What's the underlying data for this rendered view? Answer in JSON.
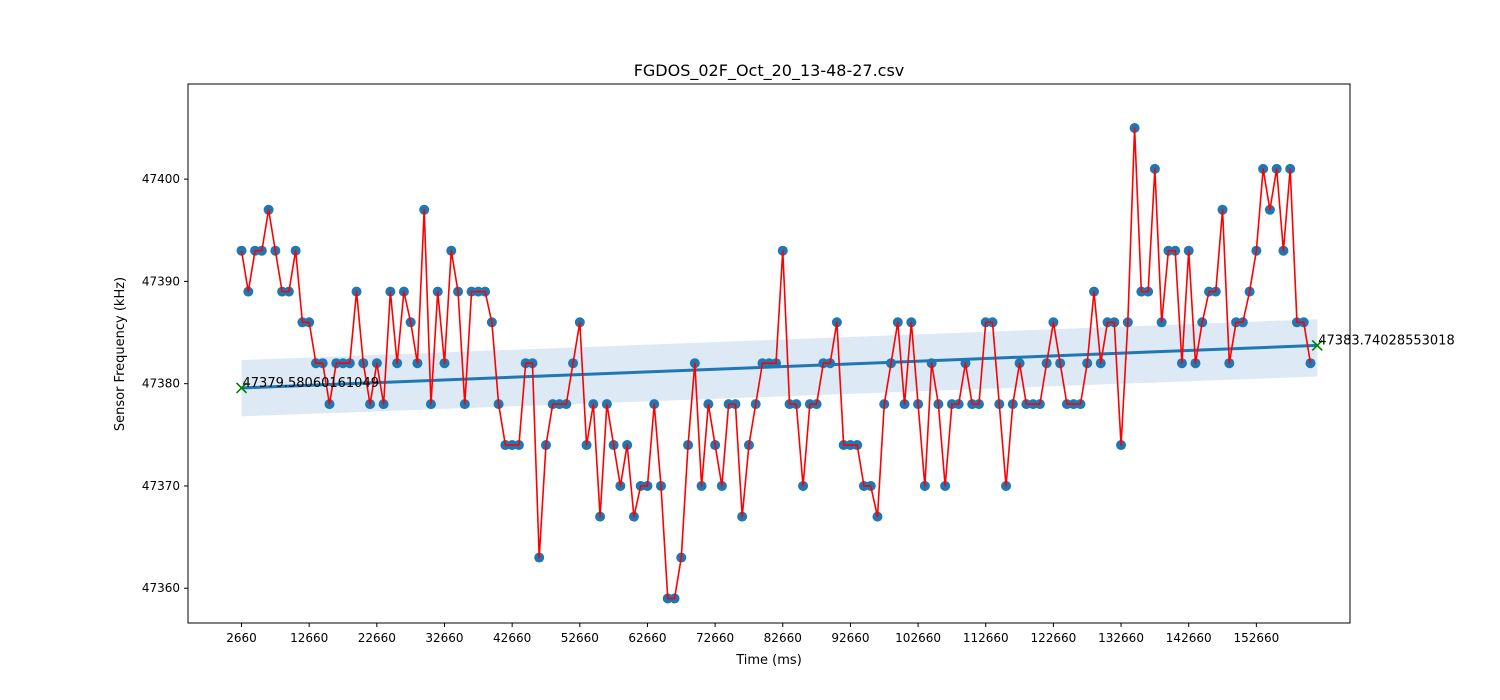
{
  "chart_data": {
    "type": "scatter",
    "title": "FGDOS_02F_Oct_20_13-48-27.csv",
    "xlabel": "Time (ms)",
    "ylabel": "Sensor Frequency (kHz)",
    "xlim": [
      -5252,
      166500
    ],
    "ylim": [
      47356.6,
      47409.3
    ],
    "xticks": [
      2660,
      12660,
      22660,
      32660,
      42660,
      52660,
      62660,
      72660,
      82660,
      92660,
      102660,
      112660,
      122660,
      132660,
      142660,
      152660
    ],
    "yticks": [
      47360,
      47370,
      47380,
      47390,
      47400
    ],
    "grid": false,
    "legend": "none",
    "colors": {
      "points": "#1f77b4",
      "line": "#ff0000",
      "regression": "#1f77b4",
      "band": "#c6dbef",
      "endpoint_marker": "#008000"
    },
    "x_start": 2660,
    "x_step": 1000,
    "y": [
      47393,
      47389,
      47393,
      47393,
      47397,
      47393,
      47389,
      47389,
      47393,
      47386,
      47386,
      47382,
      47382,
      47378,
      47382,
      47382,
      47382,
      47389,
      47382,
      47378,
      47382,
      47378,
      47389,
      47382,
      47389,
      47386,
      47382,
      47397,
      47378,
      47389,
      47382,
      47393,
      47389,
      47378,
      47389,
      47389,
      47389,
      47386,
      47378,
      47374,
      47374,
      47374,
      47382,
      47382,
      47363,
      47374,
      47378,
      47378,
      47378,
      47382,
      47386,
      47374,
      47378,
      47367,
      47378,
      47374,
      47370,
      47374,
      47367,
      47370,
      47370,
      47378,
      47370,
      47359,
      47359,
      47363,
      47374,
      47382,
      47370,
      47378,
      47374,
      47370,
      47378,
      47378,
      47367,
      47374,
      47378,
      47382,
      47382,
      47382,
      47393,
      47378,
      47378,
      47370,
      47378,
      47378,
      47382,
      47382,
      47386,
      47374,
      47374,
      47374,
      47370,
      47370,
      47367,
      47378,
      47382,
      47386,
      47378,
      47386,
      47378,
      47370,
      47382,
      47378,
      47370,
      47378,
      47378,
      47382,
      47378,
      47378,
      47386,
      47386,
      47378,
      47370,
      47378,
      47382,
      47378,
      47378,
      47378,
      47382,
      47386,
      47382,
      47378,
      47378,
      47378,
      47382,
      47389,
      47382,
      47386,
      47386,
      47374,
      47386,
      47405,
      47389,
      47389,
      47401,
      47386,
      47393,
      47393,
      47382,
      47393,
      47382,
      47386,
      47389,
      47389,
      47397,
      47382,
      47386,
      47386,
      47389,
      47393,
      47401,
      47397,
      47401,
      47393,
      47401,
      47386,
      47386,
      47382
    ],
    "regression": {
      "x": [
        2660,
        161660
      ],
      "y": [
        47379.58060161049,
        47383.74028553018
      ],
      "band_lower": [
        47376.8,
        47380.7
      ],
      "band_upper": [
        47382.3,
        47386.3
      ]
    },
    "annotations": [
      {
        "x": 2660,
        "y": 47379.58060161049,
        "text": "47379.58060161049"
      },
      {
        "x": 161660,
        "y": 47383.74028553018,
        "text": "47383.74028553018"
      }
    ]
  }
}
